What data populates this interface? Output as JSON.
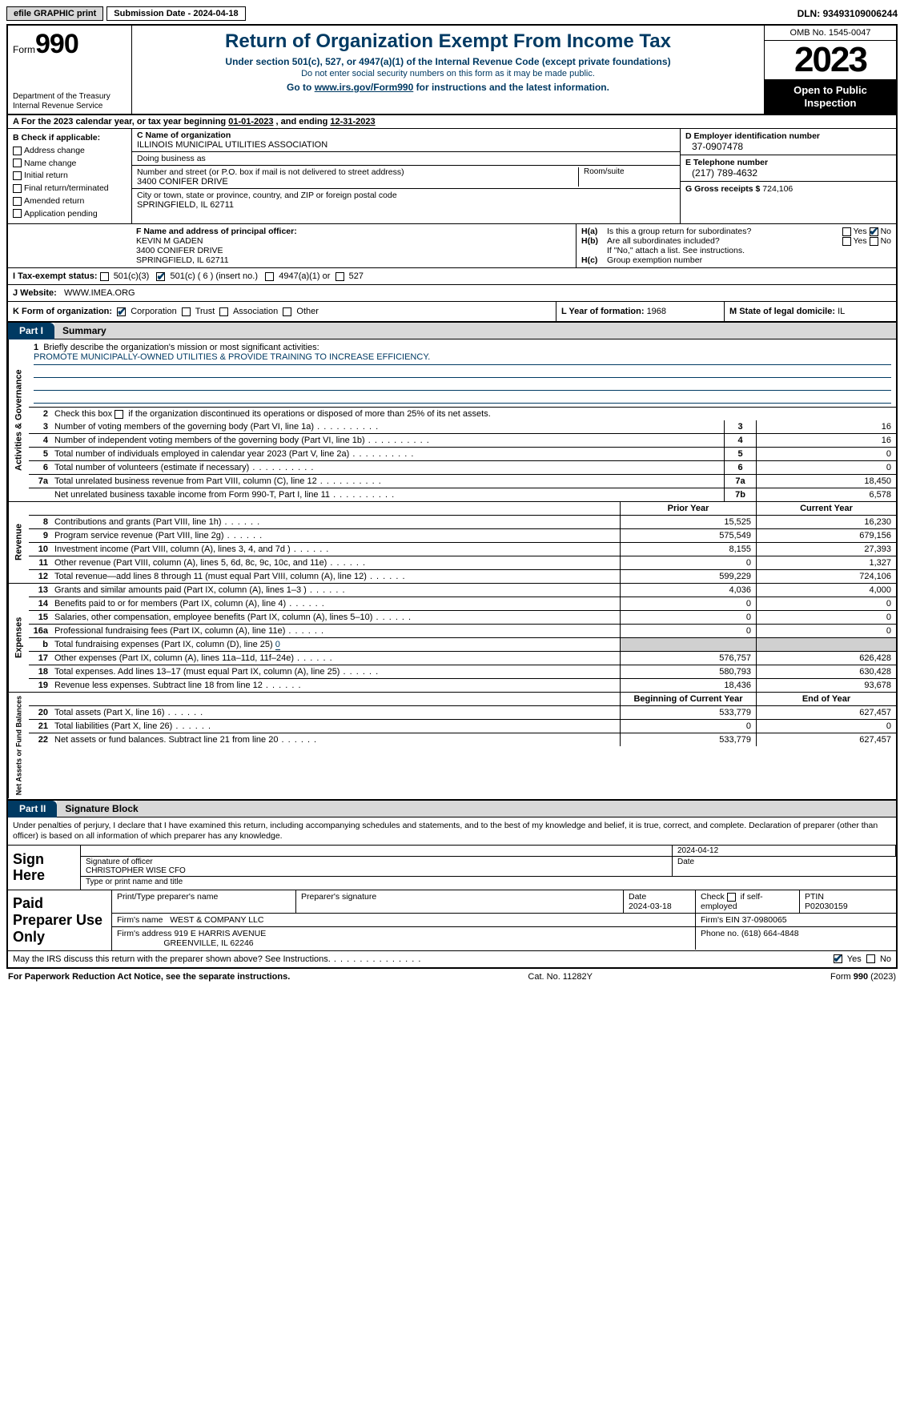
{
  "topbar": {
    "efile": "efile GRAPHIC print",
    "submission_label": "Submission Date - ",
    "submission_date": "2024-04-18",
    "dln_label": "DLN: ",
    "dln": "93493109006244"
  },
  "header": {
    "form_prefix": "Form",
    "form_number": "990",
    "title": "Return of Organization Exempt From Income Tax",
    "sub1": "Under section 501(c), 527, or 4947(a)(1) of the Internal Revenue Code (except private foundations)",
    "sub2": "Do not enter social security numbers on this form as it may be made public.",
    "sub3_pre": "Go to ",
    "sub3_link": "www.irs.gov/Form990",
    "sub3_post": " for instructions and the latest information.",
    "dept1": "Department of the Treasury",
    "dept2": "Internal Revenue Service",
    "omb": "OMB No. 1545-0047",
    "year": "2023",
    "open": "Open to Public Inspection"
  },
  "periodA": {
    "text_pre": "A For the 2023 calendar year, or tax year beginning ",
    "begin": "01-01-2023",
    "text_mid": " , and ending ",
    "end": "12-31-2023"
  },
  "boxB": {
    "label": "B Check if applicable:",
    "items": [
      "Address change",
      "Name change",
      "Initial return",
      "Final return/terminated",
      "Amended return",
      "Application pending"
    ]
  },
  "boxC": {
    "name_lbl": "C Name of organization",
    "name": "ILLINOIS MUNICIPAL UTILITIES ASSOCIATION",
    "dba_lbl": "Doing business as",
    "dba": "",
    "street_lbl": "Number and street (or P.O. box if mail is not delivered to street address)",
    "street": "3400 CONIFER DRIVE",
    "room_lbl": "Room/suite",
    "room": "",
    "city_lbl": "City or town, state or province, country, and ZIP or foreign postal code",
    "city": "SPRINGFIELD, IL  62711"
  },
  "boxD": {
    "lbl": "D Employer identification number",
    "val": "37-0907478"
  },
  "boxE": {
    "lbl": "E Telephone number",
    "val": "(217) 789-4632"
  },
  "boxG": {
    "lbl": "G Gross receipts $ ",
    "val": "724,106"
  },
  "boxF": {
    "lbl": "F  Name and address of principal officer:",
    "name": "KEVIN M GADEN",
    "addr1": "3400 CONIFER DRIVE",
    "addr2": "SPRINGFIELD, IL  62711"
  },
  "boxH": {
    "a_lbl": "Is this a group return for subordinates?",
    "a_yes": "Yes",
    "a_no": "No",
    "b_lbl": "Are all subordinates included?",
    "b_yes": "Yes",
    "b_no": "No",
    "b_note": "If \"No,\" attach a list. See instructions.",
    "c_lbl": "Group exemption number",
    "c_val": ""
  },
  "boxI": {
    "lbl": "I   Tax-exempt status:",
    "opt1": "501(c)(3)",
    "opt2_pre": "501(c) ( ",
    "opt2_num": "6",
    "opt2_post": " ) (insert no.)",
    "opt3": "4947(a)(1) or",
    "opt4": "527"
  },
  "boxJ": {
    "lbl": "J   Website:",
    "val": "WWW.IMEA.ORG"
  },
  "boxK": {
    "lbl": "K Form of organization:",
    "opts": [
      "Corporation",
      "Trust",
      "Association",
      "Other"
    ]
  },
  "boxL": {
    "lbl": "L Year of formation: ",
    "val": "1968"
  },
  "boxM": {
    "lbl": "M State of legal domicile: ",
    "val": "IL"
  },
  "part1": {
    "tag": "Part I",
    "title": "Summary"
  },
  "mission": {
    "q": "Briefly describe the organization's mission or most significant activities:",
    "text": "PROMOTE MUNICIPALLY-OWNED UTILITIES & PROVIDE TRAINING TO INCREASE EFFICIENCY."
  },
  "l2": "Check this box      if the organization discontinued its operations or disposed of more than 25% of its net assets.",
  "governance": [
    {
      "n": "3",
      "d": "Number of voting members of the governing body (Part VI, line 1a)",
      "b": "3",
      "v": "16"
    },
    {
      "n": "4",
      "d": "Number of independent voting members of the governing body (Part VI, line 1b)",
      "b": "4",
      "v": "16"
    },
    {
      "n": "5",
      "d": "Total number of individuals employed in calendar year 2023 (Part V, line 2a)",
      "b": "5",
      "v": "0"
    },
    {
      "n": "6",
      "d": "Total number of volunteers (estimate if necessary)",
      "b": "6",
      "v": "0"
    },
    {
      "n": "7a",
      "d": "Total unrelated business revenue from Part VIII, column (C), line 12",
      "b": "7a",
      "v": "18,450"
    },
    {
      "n": "",
      "d": "Net unrelated business taxable income from Form 990-T, Part I, line 11",
      "b": "7b",
      "v": "6,578"
    }
  ],
  "colhdr": {
    "prior": "Prior Year",
    "current": "Current Year"
  },
  "revenue": [
    {
      "n": "8",
      "d": "Contributions and grants (Part VIII, line 1h)",
      "p": "15,525",
      "c": "16,230"
    },
    {
      "n": "9",
      "d": "Program service revenue (Part VIII, line 2g)",
      "p": "575,549",
      "c": "679,156"
    },
    {
      "n": "10",
      "d": "Investment income (Part VIII, column (A), lines 3, 4, and 7d )",
      "p": "8,155",
      "c": "27,393"
    },
    {
      "n": "11",
      "d": "Other revenue (Part VIII, column (A), lines 5, 6d, 8c, 9c, 10c, and 11e)",
      "p": "0",
      "c": "1,327"
    },
    {
      "n": "12",
      "d": "Total revenue—add lines 8 through 11 (must equal Part VIII, column (A), line 12)",
      "p": "599,229",
      "c": "724,106"
    }
  ],
  "expenses": [
    {
      "n": "13",
      "d": "Grants and similar amounts paid (Part IX, column (A), lines 1–3 )",
      "p": "4,036",
      "c": "4,000"
    },
    {
      "n": "14",
      "d": "Benefits paid to or for members (Part IX, column (A), line 4)",
      "p": "0",
      "c": "0"
    },
    {
      "n": "15",
      "d": "Salaries, other compensation, employee benefits (Part IX, column (A), lines 5–10)",
      "p": "0",
      "c": "0"
    },
    {
      "n": "16a",
      "d": "Professional fundraising fees (Part IX, column (A), line 11e)",
      "p": "0",
      "c": "0"
    }
  ],
  "l16b": {
    "n": "b",
    "d": "Total fundraising expenses (Part IX, column (D), line 25)",
    "val": "0"
  },
  "expenses2": [
    {
      "n": "17",
      "d": "Other expenses (Part IX, column (A), lines 11a–11d, 11f–24e)",
      "p": "576,757",
      "c": "626,428"
    },
    {
      "n": "18",
      "d": "Total expenses. Add lines 13–17 (must equal Part IX, column (A), line 25)",
      "p": "580,793",
      "c": "630,428"
    },
    {
      "n": "19",
      "d": "Revenue less expenses. Subtract line 18 from line 12",
      "p": "18,436",
      "c": "93,678"
    }
  ],
  "colhdr2": {
    "beg": "Beginning of Current Year",
    "end": "End of Year"
  },
  "netassets": [
    {
      "n": "20",
      "d": "Total assets (Part X, line 16)",
      "p": "533,779",
      "c": "627,457"
    },
    {
      "n": "21",
      "d": "Total liabilities (Part X, line 26)",
      "p": "0",
      "c": "0"
    },
    {
      "n": "22",
      "d": "Net assets or fund balances. Subtract line 21 from line 20",
      "p": "533,779",
      "c": "627,457"
    }
  ],
  "vtabs": {
    "gov": "Activities & Governance",
    "rev": "Revenue",
    "exp": "Expenses",
    "na": "Net Assets or Fund Balances"
  },
  "part2": {
    "tag": "Part II",
    "title": "Signature Block"
  },
  "perjury": "Under penalties of perjury, I declare that I have examined this return, including accompanying schedules and statements, and to the best of my knowledge and belief, it is true, correct, and complete. Declaration of preparer (other than officer) is based on all information of which preparer has any knowledge.",
  "sign": {
    "lbl": "Sign Here",
    "sigofficer_lbl": "Signature of officer",
    "date_lbl": "Date",
    "date": "2024-04-12",
    "name": "CHRISTOPHER WISE  CFO",
    "name_lbl": "Type or print name and title"
  },
  "preparer": {
    "lbl": "Paid Preparer Use Only",
    "col1": "Print/Type preparer's name",
    "col2": "Preparer's signature",
    "col3_lbl": "Date",
    "col3": "2024-03-18",
    "col4_lbl": "Check        if self-employed",
    "col5_lbl": "PTIN",
    "col5": "P02030159",
    "firm_lbl": "Firm's name",
    "firm": "WEST & COMPANY LLC",
    "ein_lbl": "Firm's EIN",
    "ein": "37-0980065",
    "addr_lbl": "Firm's address",
    "addr1": "919 E HARRIS AVENUE",
    "addr2": "GREENVILLE, IL  62246",
    "phone_lbl": "Phone no.",
    "phone": "(618) 664-4848"
  },
  "discuss": {
    "q": "May the IRS discuss this return with the preparer shown above? See Instructions.",
    "yes": "Yes",
    "no": "No"
  },
  "footer": {
    "l": "For Paperwork Reduction Act Notice, see the separate instructions.",
    "cat": "Cat. No. 11282Y",
    "form": "Form 990 (2023)"
  }
}
